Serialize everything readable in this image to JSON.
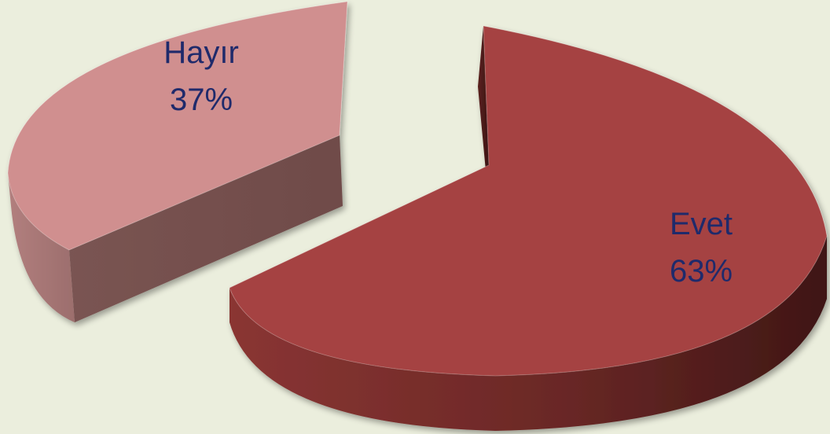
{
  "chart_data": {
    "type": "pie",
    "title": "",
    "slices": [
      {
        "name": "Evet",
        "value": 63,
        "label": "Evet",
        "percent_label": "63%",
        "color": "#a54342"
      },
      {
        "name": "Hayır",
        "value": 37,
        "label": "Hayır",
        "percent_label": "37%",
        "color": "#d08f8f"
      }
    ],
    "style": "3d-exploded",
    "legend": "none",
    "background": "#ebeedd"
  }
}
